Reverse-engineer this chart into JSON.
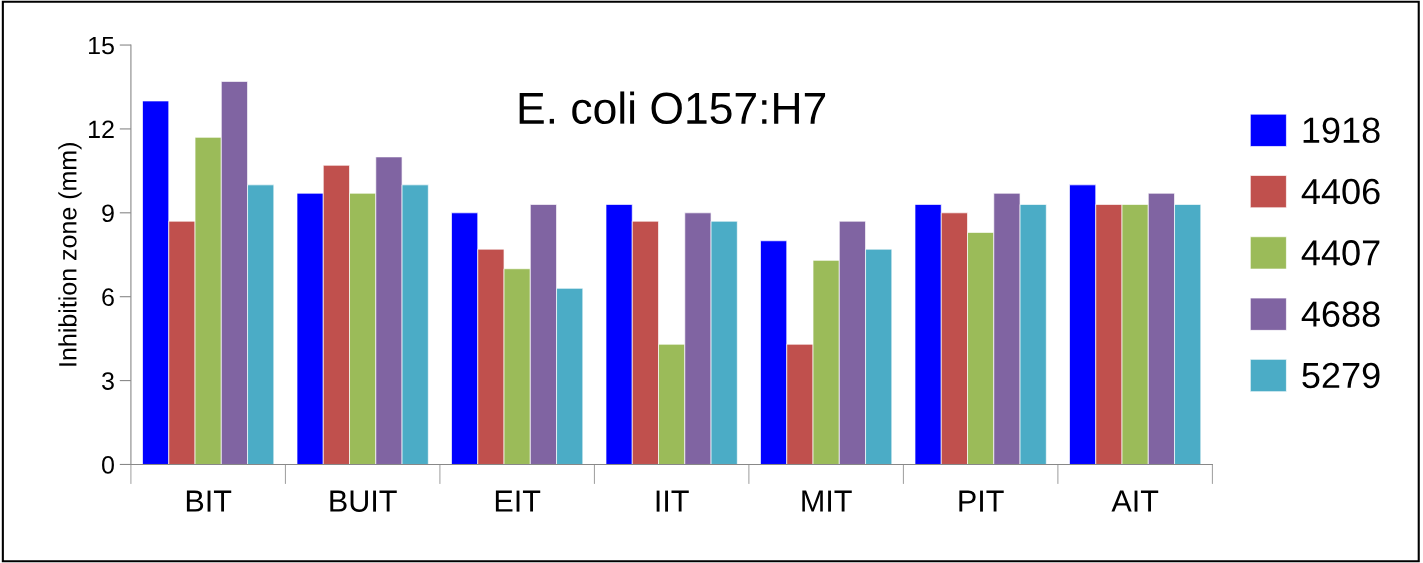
{
  "chart_data": {
    "type": "bar",
    "title": "E. coli O157:H7",
    "ylabel": "Inhibition zone (mm)",
    "categories": [
      "BIT",
      "BUIT",
      "EIT",
      "IIT",
      "MIT",
      "PIT",
      "AIT"
    ],
    "series": [
      {
        "name": "1918",
        "color": "#0000ff",
        "values": [
          13.0,
          9.7,
          9.0,
          9.3,
          8.0,
          9.3,
          10.0
        ]
      },
      {
        "name": "4406",
        "color": "#c0504d",
        "values": [
          8.7,
          10.7,
          7.7,
          8.7,
          4.3,
          9.0,
          9.3
        ]
      },
      {
        "name": "4407",
        "color": "#9bbb59",
        "values": [
          11.7,
          9.7,
          7.0,
          4.3,
          7.3,
          8.3,
          9.3
        ]
      },
      {
        "name": "4688",
        "color": "#8064a2",
        "values": [
          13.7,
          11.0,
          9.3,
          9.0,
          8.7,
          9.7,
          9.7
        ]
      },
      {
        "name": "5279",
        "color": "#4bacc6",
        "values": [
          10.0,
          10.0,
          6.3,
          8.7,
          7.7,
          9.3,
          9.3
        ]
      }
    ],
    "ylim": [
      0,
      15
    ],
    "yticks": [
      0,
      3,
      6,
      9,
      12,
      15
    ],
    "grid": false,
    "legend": "right"
  }
}
